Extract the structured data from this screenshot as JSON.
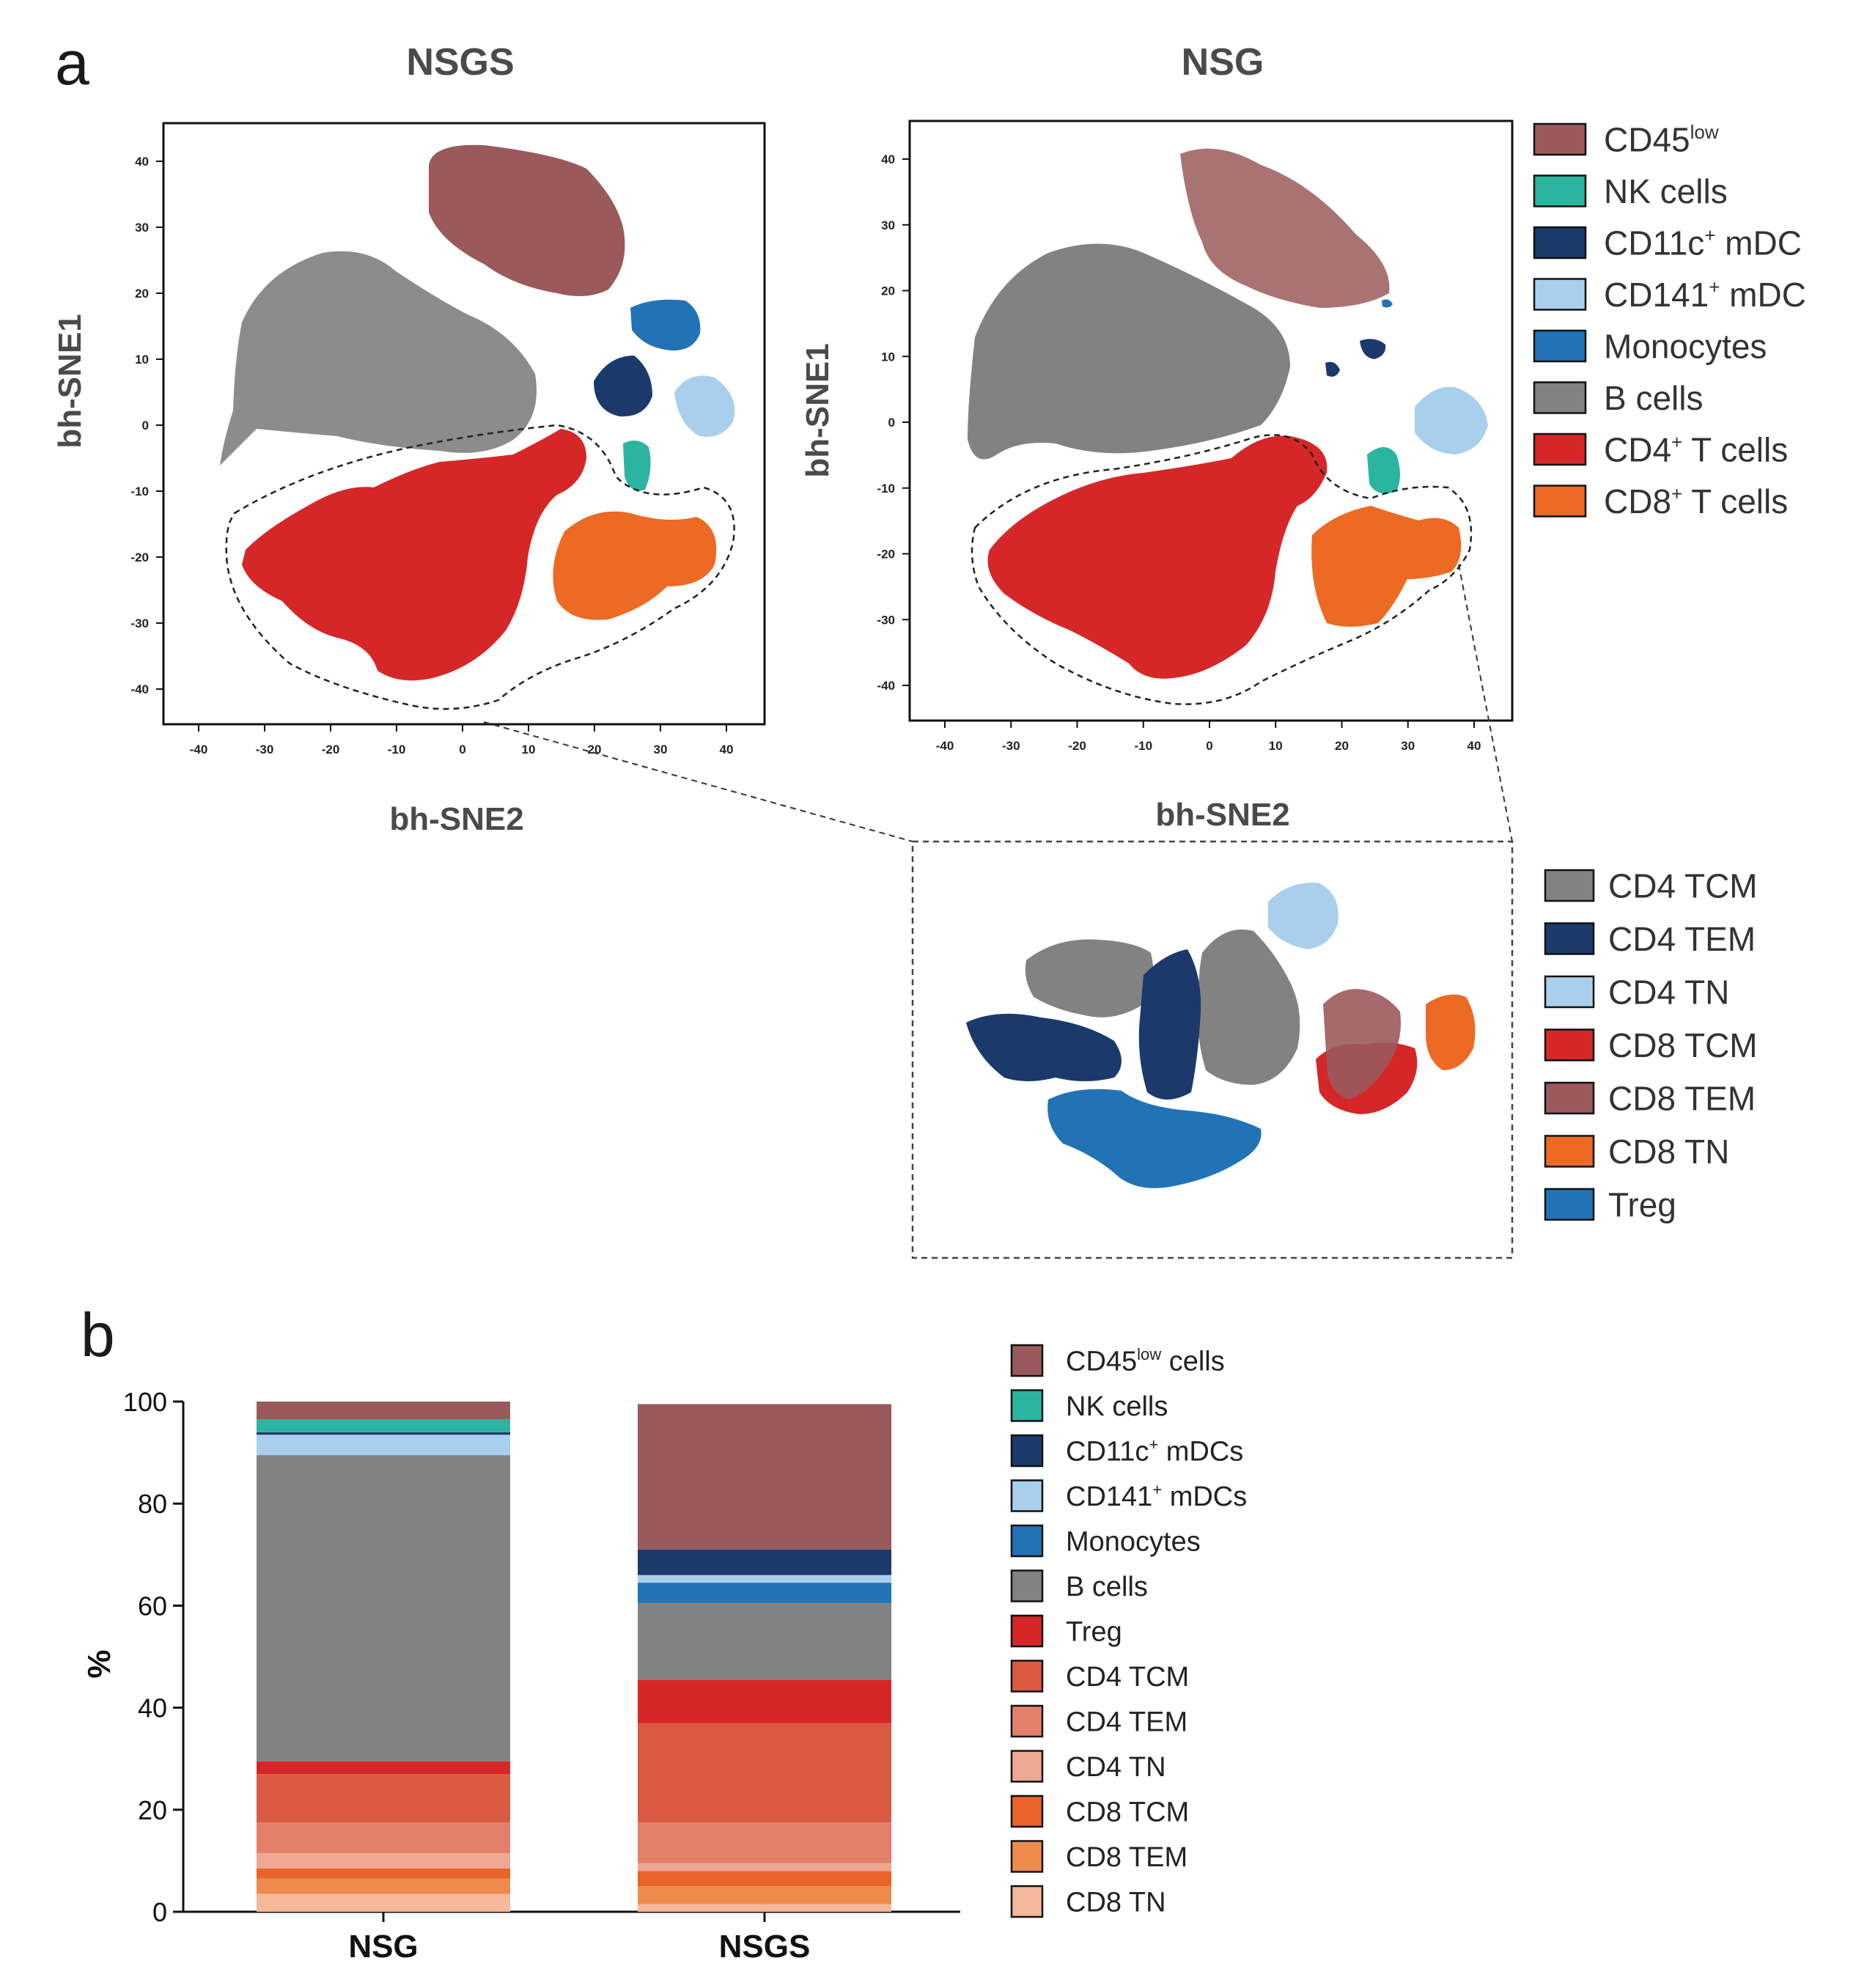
{
  "panel_a": {
    "label": "a",
    "left_plot_title": "NSGS",
    "right_plot_title": "NSG",
    "y_axis_title": "bh-SNE1",
    "x_axis_title": "bh-SNE2",
    "ticks_x": [
      "-40",
      "-30",
      "-20",
      "-10",
      "0",
      "10",
      "20",
      "30",
      "40"
    ],
    "ticks_y": [
      "40",
      "30",
      "20",
      "10",
      "0",
      "-10",
      "-20",
      "-30",
      "-40"
    ],
    "legend": [
      {
        "base": "CD45",
        "sup": "low",
        "rest": "",
        "color": "#9a5a5c"
      },
      {
        "base": "NK cells",
        "sup": "",
        "rest": "",
        "color": "#2bb5a0"
      },
      {
        "base": "CD11c",
        "sup": "+",
        "rest": " mDC",
        "color": "#1b3a6b"
      },
      {
        "base": "CD141",
        "sup": "+",
        "rest": " mDC",
        "color": "#a9cfec"
      },
      {
        "base": "Monocytes",
        "sup": "",
        "rest": "",
        "color": "#2273b5"
      },
      {
        "base": "B cells",
        "sup": "",
        "rest": "",
        "color": "#828282"
      },
      {
        "base": "CD4",
        "sup": "+",
        "rest": " T cells",
        "color": "#d62728"
      },
      {
        "base": "CD8",
        "sup": "+",
        "rest": " T cells",
        "color": "#ec6a24"
      }
    ],
    "inset_legend": [
      {
        "label": "CD4 TCM",
        "color": "#828282"
      },
      {
        "label": "CD4 TEM",
        "color": "#1b3a6b"
      },
      {
        "label": "CD4 TN",
        "color": "#a9cfec"
      },
      {
        "label": "CD8 TCM",
        "color": "#d62728"
      },
      {
        "label": "CD8 TEM",
        "color": "#9a5a5c"
      },
      {
        "label": "CD8 TN",
        "color": "#ec6a24"
      },
      {
        "label": "Treg",
        "color": "#2273b5"
      }
    ]
  },
  "panel_b": {
    "label": "b"
  },
  "chart_data": {
    "type": "bar",
    "stacked": true,
    "categories": [
      "NSG",
      "NSGS"
    ],
    "ylabel": "%",
    "ylim": [
      0,
      100
    ],
    "yticks": [
      "0",
      "20",
      "40",
      "60",
      "80",
      "100"
    ],
    "series": [
      {
        "name": "CD8 TN",
        "color": "#f4b89a",
        "values": [
          3.5,
          1.5
        ]
      },
      {
        "name": "CD8 TEM",
        "color": "#ee8a4c",
        "values": [
          3.0,
          3.5
        ]
      },
      {
        "name": "CD8 TCM",
        "color": "#e8622a",
        "values": [
          2.0,
          3.0
        ]
      },
      {
        "name": "CD4 TN",
        "color": "#eea793",
        "values": [
          3.0,
          1.5
        ]
      },
      {
        "name": "CD4 TEM",
        "color": "#e4806a",
        "values": [
          6.0,
          8.0
        ]
      },
      {
        "name": "CD4 TCM",
        "color": "#db5a42",
        "values": [
          9.5,
          19.5
        ]
      },
      {
        "name": "Treg",
        "color": "#d62728",
        "values": [
          2.5,
          8.5
        ]
      },
      {
        "name": "B cells",
        "color": "#828282",
        "values": [
          60.0,
          15.0
        ]
      },
      {
        "name": "Monocytes",
        "color": "#2273b5",
        "values": [
          0.0,
          4.0
        ]
      },
      {
        "name": "CD141+ mDCs",
        "color": "#a9cfec",
        "values": [
          4.0,
          1.5
        ]
      },
      {
        "name": "CD11c+ mDCs",
        "color": "#1b3a6b",
        "values": [
          0.5,
          5.0
        ]
      },
      {
        "name": "NK cells",
        "color": "#2bb5a0",
        "values": [
          2.5,
          0.0
        ]
      },
      {
        "name": "CD45low cells",
        "color": "#9a5a5c",
        "values": [
          3.5,
          28.5
        ]
      }
    ],
    "legend": [
      {
        "base": "CD45",
        "sup": "low",
        "rest": " cells",
        "color": "#9a5a5c"
      },
      {
        "base": "NK cells",
        "sup": "",
        "rest": "",
        "color": "#2bb5a0"
      },
      {
        "base": "CD11c",
        "sup": "+",
        "rest": " mDCs",
        "color": "#1b3a6b"
      },
      {
        "base": "CD141",
        "sup": "+",
        "rest": " mDCs",
        "color": "#a9cfec"
      },
      {
        "base": "Monocytes",
        "sup": "",
        "rest": "",
        "color": "#2273b5"
      },
      {
        "base": "B cells",
        "sup": "",
        "rest": "",
        "color": "#828282"
      },
      {
        "base": "Treg",
        "sup": "",
        "rest": "",
        "color": "#d62728"
      },
      {
        "base": "CD4 TCM",
        "sup": "",
        "rest": "",
        "color": "#db5a42"
      },
      {
        "base": "CD4 TEM",
        "sup": "",
        "rest": "",
        "color": "#e4806a"
      },
      {
        "base": "CD4 TN",
        "sup": "",
        "rest": "",
        "color": "#eea793"
      },
      {
        "base": "CD8 TCM",
        "sup": "",
        "rest": "",
        "color": "#e8622a"
      },
      {
        "base": "CD8 TEM",
        "sup": "",
        "rest": "",
        "color": "#ee8a4c"
      },
      {
        "base": "CD8 TN",
        "sup": "",
        "rest": "",
        "color": "#f4b89a"
      }
    ]
  }
}
